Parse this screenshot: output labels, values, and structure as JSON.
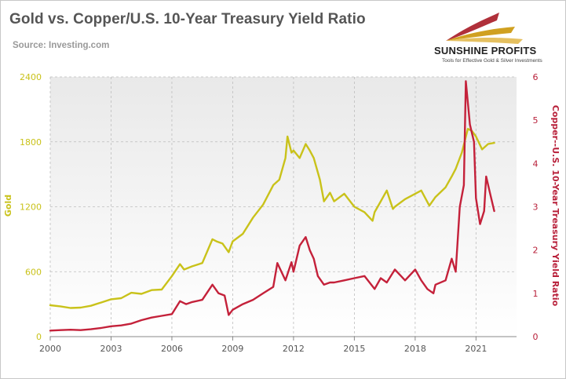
{
  "title": "Gold vs. Copper/U.S. 10-Year Treasury Yield Ratio",
  "source": "Source: Investing.com",
  "logo": {
    "name": "SUNSHINE PROFITS",
    "tagline": "Tools for Effective Gold & Silver Investments"
  },
  "colors": {
    "gold": "#c9c21a",
    "ratio": "#c4213a",
    "gold_axis": "#c9c21a",
    "ratio_axis": "#b8203a"
  },
  "chart_data": {
    "type": "line",
    "x_ticks": [
      2000,
      2003,
      2006,
      2009,
      2012,
      2015,
      2018,
      2021
    ],
    "xlim": [
      2000,
      2023
    ],
    "left_axis": {
      "label": "Gold",
      "ylim": [
        0,
        2400
      ],
      "ticks": [
        0,
        600,
        1200,
        1800,
        2400
      ]
    },
    "right_axis": {
      "label": "Copper--U.S. 10-Year Treasury Yield Ratio",
      "ylim": [
        0,
        6
      ],
      "ticks": [
        0,
        1,
        2,
        3,
        4,
        5,
        6
      ]
    },
    "grid": true,
    "series": [
      {
        "axis": "left",
        "x": [
          2000.0,
          2000.5,
          2001.0,
          2001.5,
          2002.0,
          2002.5,
          2003.0,
          2003.5,
          2004.0,
          2004.5,
          2005.0,
          2005.5,
          2006.0,
          2006.4,
          2006.6,
          2007.0,
          2007.5,
          2008.0,
          2008.2,
          2008.5,
          2008.8,
          2009.0,
          2009.5,
          2010.0,
          2010.5,
          2011.0,
          2011.3,
          2011.6,
          2011.7,
          2011.9,
          2012.0,
          2012.3,
          2012.6,
          2012.8,
          2013.0,
          2013.3,
          2013.5,
          2013.8,
          2014.0,
          2014.5,
          2015.0,
          2015.5,
          2015.9,
          2016.0,
          2016.3,
          2016.6,
          2016.9,
          2017.0,
          2017.5,
          2018.0,
          2018.3,
          2018.7,
          2019.0,
          2019.5,
          2019.8,
          2020.0,
          2020.3,
          2020.6,
          2020.8,
          2021.0,
          2021.3,
          2021.6,
          2021.9
        ],
        "values": [
          290,
          280,
          265,
          268,
          285,
          315,
          345,
          355,
          405,
          395,
          430,
          435,
          560,
          670,
          620,
          650,
          680,
          900,
          880,
          860,
          780,
          880,
          950,
          1100,
          1220,
          1400,
          1450,
          1650,
          1850,
          1700,
          1720,
          1650,
          1780,
          1720,
          1650,
          1450,
          1250,
          1330,
          1250,
          1320,
          1200,
          1150,
          1070,
          1150,
          1250,
          1350,
          1180,
          1200,
          1270,
          1320,
          1350,
          1210,
          1290,
          1380,
          1480,
          1550,
          1700,
          1920,
          1900,
          1850,
          1730,
          1780,
          1790
        ]
      },
      {
        "axis": "right",
        "x": [
          2000.0,
          2000.5,
          2001.0,
          2001.5,
          2002.0,
          2002.5,
          2003.0,
          2003.5,
          2004.0,
          2004.5,
          2005.0,
          2005.5,
          2006.0,
          2006.4,
          2006.7,
          2007.0,
          2007.5,
          2008.0,
          2008.3,
          2008.6,
          2008.8,
          2009.0,
          2009.5,
          2010.0,
          2010.5,
          2011.0,
          2011.2,
          2011.6,
          2011.9,
          2012.0,
          2012.3,
          2012.6,
          2012.8,
          2013.0,
          2013.2,
          2013.5,
          2013.8,
          2014.0,
          2014.5,
          2015.0,
          2015.5,
          2016.0,
          2016.3,
          2016.6,
          2017.0,
          2017.5,
          2018.0,
          2018.3,
          2018.6,
          2018.9,
          2019.0,
          2019.5,
          2019.8,
          2020.0,
          2020.2,
          2020.4,
          2020.5,
          2020.7,
          2020.9,
          2021.0,
          2021.2,
          2021.4,
          2021.5,
          2021.7,
          2021.9
        ],
        "values": [
          0.14,
          0.15,
          0.16,
          0.15,
          0.17,
          0.2,
          0.24,
          0.26,
          0.3,
          0.38,
          0.44,
          0.48,
          0.52,
          0.82,
          0.75,
          0.8,
          0.85,
          1.2,
          1.0,
          0.95,
          0.5,
          0.62,
          0.75,
          0.85,
          1.0,
          1.15,
          1.7,
          1.3,
          1.72,
          1.5,
          2.1,
          2.3,
          2.0,
          1.8,
          1.4,
          1.2,
          1.25,
          1.25,
          1.3,
          1.35,
          1.4,
          1.1,
          1.35,
          1.25,
          1.55,
          1.3,
          1.55,
          1.3,
          1.1,
          1.0,
          1.2,
          1.3,
          1.8,
          1.5,
          3.0,
          3.5,
          5.9,
          4.9,
          4.5,
          3.2,
          2.6,
          2.9,
          3.7,
          3.3,
          2.9
        ]
      }
    ]
  }
}
